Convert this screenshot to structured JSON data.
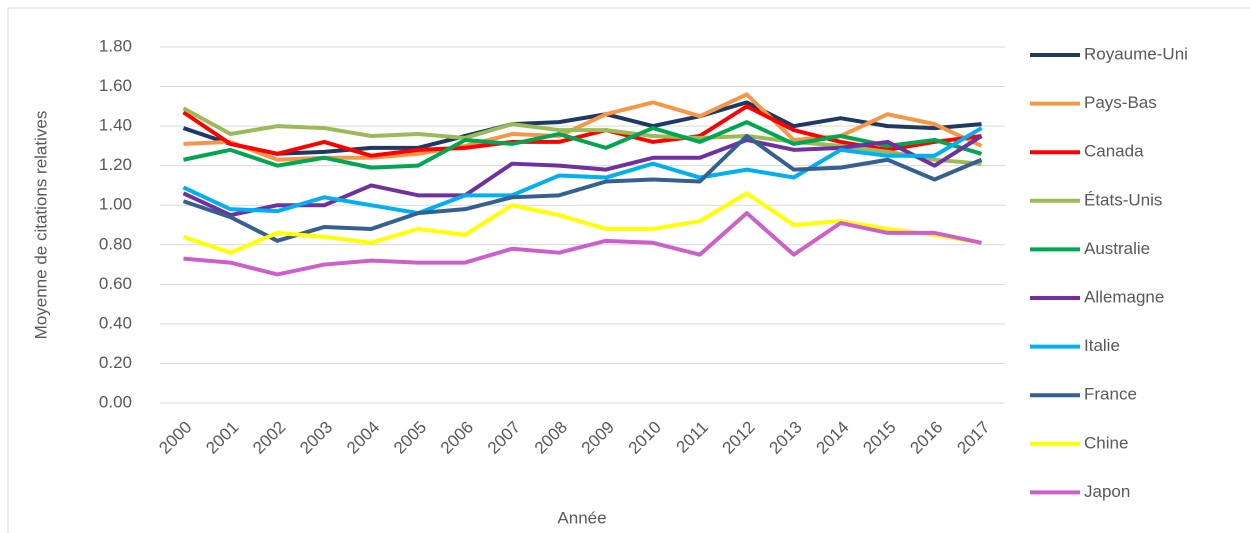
{
  "chart_data": {
    "type": "line",
    "y_label": "Moyenne de citations relatives",
    "x_label": "Année",
    "categories": [
      "2000",
      "2001",
      "2002",
      "2003",
      "2004",
      "2005",
      "2006",
      "2007",
      "2008",
      "2009",
      "2010",
      "2011",
      "2012",
      "2013",
      "2014",
      "2015",
      "2016",
      "2017"
    ],
    "ylim": [
      0,
      1.8
    ],
    "yticks": [
      {
        "value": 0,
        "label": "0.00"
      },
      {
        "value": 0.2,
        "label": "0.20"
      },
      {
        "value": 0.4,
        "label": "0.40"
      },
      {
        "value": 0.6,
        "label": "0.60"
      },
      {
        "value": 0.8,
        "label": "0.80"
      },
      {
        "value": 1.0,
        "label": "1.00"
      },
      {
        "value": 1.2,
        "label": "1.20"
      },
      {
        "value": 1.4,
        "label": "1.40"
      },
      {
        "value": 1.6,
        "label": "1.60"
      },
      {
        "value": 1.8,
        "label": "1.80"
      }
    ],
    "grid": true,
    "legend": "right",
    "series": [
      {
        "name": "Royaume-Uni",
        "color": "#1f3864",
        "values": [
          1.39,
          1.31,
          1.26,
          1.27,
          1.29,
          1.29,
          1.35,
          1.41,
          1.42,
          1.46,
          1.4,
          1.45,
          1.52,
          1.4,
          1.44,
          1.4,
          1.39,
          1.41
        ]
      },
      {
        "name": "Pays-Bas",
        "color": "#f79646",
        "values": [
          1.31,
          1.32,
          1.23,
          1.24,
          1.24,
          1.26,
          1.3,
          1.36,
          1.35,
          1.46,
          1.52,
          1.45,
          1.56,
          1.33,
          1.35,
          1.46,
          1.41,
          1.3
        ]
      },
      {
        "name": "Canada",
        "color": "#ff0000",
        "values": [
          1.47,
          1.31,
          1.26,
          1.32,
          1.25,
          1.28,
          1.29,
          1.32,
          1.32,
          1.38,
          1.32,
          1.35,
          1.5,
          1.38,
          1.32,
          1.28,
          1.32,
          1.35
        ]
      },
      {
        "name": "États-Unis",
        "color": "#9bbb59",
        "values": [
          1.49,
          1.36,
          1.4,
          1.39,
          1.35,
          1.36,
          1.34,
          1.41,
          1.38,
          1.38,
          1.35,
          1.34,
          1.35,
          1.32,
          1.3,
          1.27,
          1.23,
          1.21
        ]
      },
      {
        "name": "Australie",
        "color": "#00a651",
        "values": [
          1.23,
          1.28,
          1.2,
          1.24,
          1.19,
          1.2,
          1.33,
          1.31,
          1.36,
          1.29,
          1.39,
          1.32,
          1.42,
          1.31,
          1.35,
          1.3,
          1.33,
          1.26
        ]
      },
      {
        "name": "Allemagne",
        "color": "#7030a0",
        "values": [
          1.06,
          0.95,
          1.0,
          1.0,
          1.1,
          1.05,
          1.05,
          1.21,
          1.2,
          1.18,
          1.24,
          1.24,
          1.33,
          1.28,
          1.29,
          1.32,
          1.2,
          1.35
        ]
      },
      {
        "name": "Italie",
        "color": "#00b0f0",
        "values": [
          1.09,
          0.98,
          0.97,
          1.04,
          1.0,
          0.96,
          1.05,
          1.05,
          1.15,
          1.14,
          1.21,
          1.14,
          1.18,
          1.14,
          1.28,
          1.25,
          1.25,
          1.39
        ]
      },
      {
        "name": "France",
        "color": "#366092",
        "values": [
          1.02,
          0.94,
          0.82,
          0.89,
          0.88,
          0.96,
          0.98,
          1.04,
          1.05,
          1.12,
          1.13,
          1.12,
          1.35,
          1.18,
          1.19,
          1.23,
          1.13,
          1.23
        ]
      },
      {
        "name": "Chine",
        "color": "#ffff00",
        "values": [
          0.84,
          0.76,
          0.86,
          0.84,
          0.81,
          0.88,
          0.85,
          1.0,
          0.95,
          0.88,
          0.88,
          0.92,
          1.06,
          0.9,
          0.92,
          0.88,
          0.85,
          0.81
        ]
      },
      {
        "name": "Japon",
        "color": "#cc5fcc",
        "values": [
          0.73,
          0.71,
          0.65,
          0.7,
          0.72,
          0.71,
          0.71,
          0.78,
          0.76,
          0.82,
          0.81,
          0.75,
          0.96,
          0.75,
          0.91,
          0.86,
          0.86,
          0.81
        ]
      }
    ]
  }
}
